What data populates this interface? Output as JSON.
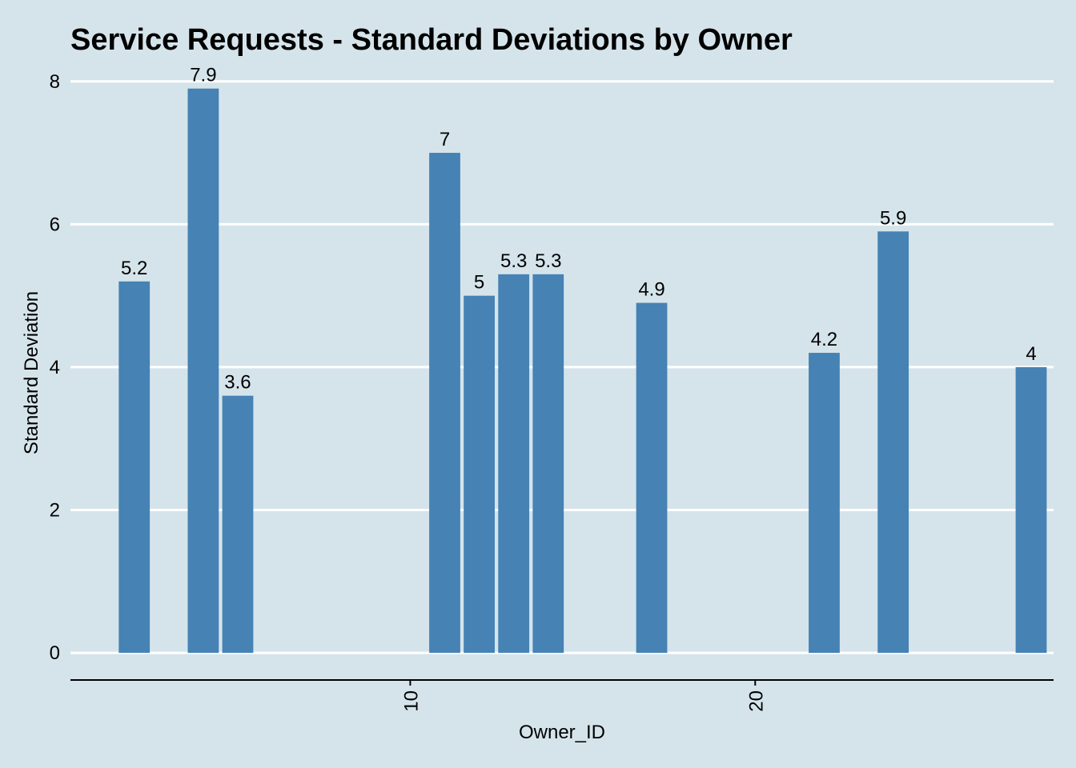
{
  "chart_data": {
    "type": "bar",
    "title": "Service Requests - Standard Deviations by Owner",
    "xlabel": "Owner_ID",
    "ylabel": "Standard Deviation",
    "x": [
      2,
      4,
      5,
      11,
      12,
      13,
      14,
      17,
      22,
      24,
      28
    ],
    "values": [
      5.2,
      7.9,
      3.6,
      7,
      5,
      5.3,
      5.3,
      4.9,
      4.2,
      5.9,
      4
    ],
    "data_labels": [
      "5.2",
      "7.9",
      "3.6",
      "7",
      "5",
      "5.3",
      "5.3",
      "4.9",
      "4.2",
      "5.9",
      "4"
    ],
    "xlim": [
      0.15,
      28.65
    ],
    "ylim": [
      -0.38,
      8.3
    ],
    "x_ticks": [
      10,
      20
    ],
    "x_tick_labels": [
      "10",
      "20"
    ],
    "y_ticks": [
      0,
      2,
      4,
      6,
      8
    ],
    "y_tick_labels": [
      "0",
      "2",
      "4",
      "6",
      "8"
    ],
    "grid": "horizontal",
    "legend": "none",
    "colors": {
      "bar": "#4682b4",
      "background": "#d5e4eb",
      "grid": "#ffffff"
    }
  }
}
